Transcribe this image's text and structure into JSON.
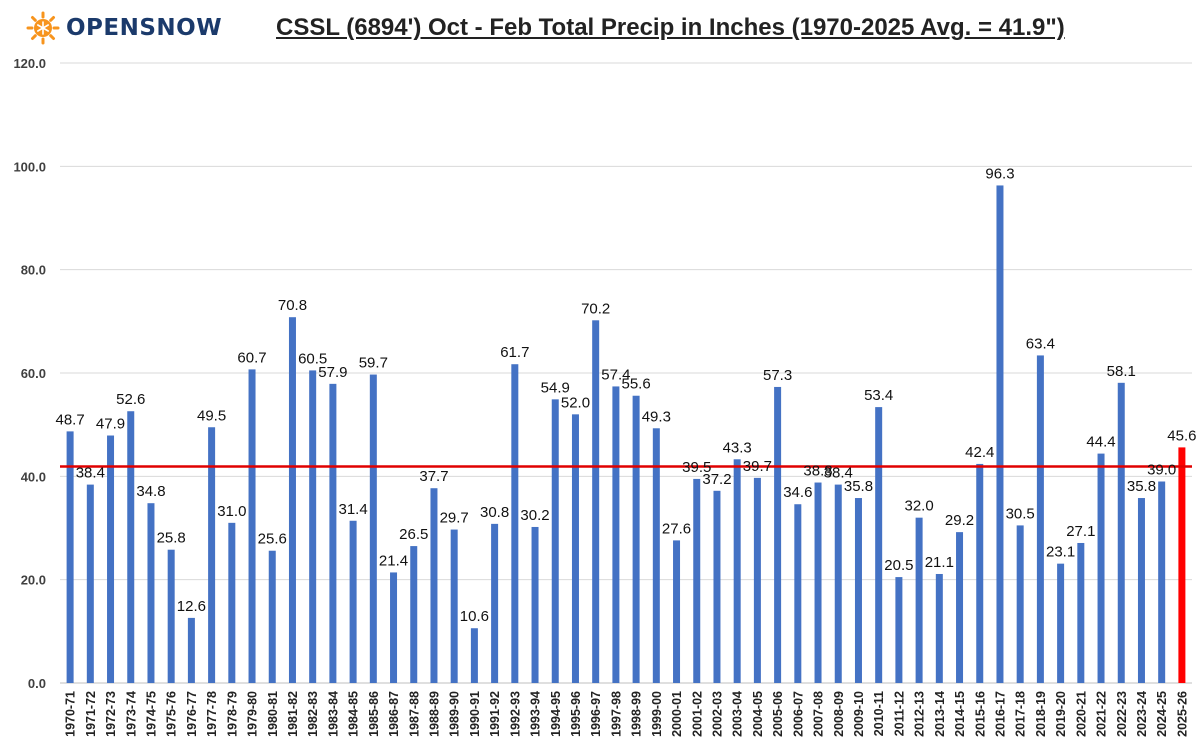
{
  "brand": {
    "name": "OPENSNOW",
    "logo_icon": "sun-snowflake-icon"
  },
  "chart_data": {
    "type": "bar",
    "title": "CSSL (6894') Oct - Feb Total Precip in Inches (1970-2025 Avg. = 41.9\")",
    "xlabel": "",
    "ylabel": "",
    "ylim": [
      0,
      120
    ],
    "yticks": [
      "0.0",
      "20.0",
      "40.0",
      "60.0",
      "80.0",
      "100.0",
      "120.0"
    ],
    "grid": true,
    "bar_color": "#4472c4",
    "highlight_color": "#ff0000",
    "average_line": {
      "value": 41.9,
      "color": "#e00000"
    },
    "categories": [
      "1970-71",
      "1971-72",
      "1972-73",
      "1973-74",
      "1974-75",
      "1975-76",
      "1976-77",
      "1977-78",
      "1978-79",
      "1979-80",
      "1980-81",
      "1981-82",
      "1982-83",
      "1983-84",
      "1984-85",
      "1985-86",
      "1986-87",
      "1987-88",
      "1988-89",
      "1989-90",
      "1990-91",
      "1991-92",
      "1992-93",
      "1993-94",
      "1994-95",
      "1995-96",
      "1996-97",
      "1997-98",
      "1998-99",
      "1999-00",
      "2000-01",
      "2001-02",
      "2002-03",
      "2003-04",
      "2004-05",
      "2005-06",
      "2006-07",
      "2007-08",
      "2008-09",
      "2009-10",
      "2010-11",
      "2011-12",
      "2012-13",
      "2013-14",
      "2014-15",
      "2015-16",
      "2016-17",
      "2017-18",
      "2018-19",
      "2019-20",
      "2020-21",
      "2021-22",
      "2022-23",
      "2023-24",
      "2024-25",
      "2025-26"
    ],
    "values": [
      48.7,
      38.4,
      47.9,
      52.6,
      34.8,
      25.8,
      12.6,
      49.5,
      31.0,
      60.7,
      25.6,
      70.8,
      60.5,
      57.9,
      31.4,
      59.7,
      21.4,
      26.5,
      37.7,
      29.7,
      10.6,
      30.8,
      61.7,
      30.2,
      54.9,
      52.0,
      70.2,
      57.4,
      55.6,
      49.3,
      27.6,
      39.5,
      37.2,
      43.3,
      39.7,
      57.3,
      34.6,
      38.8,
      38.4,
      35.8,
      53.4,
      20.5,
      32.0,
      21.1,
      29.2,
      42.4,
      96.3,
      30.5,
      63.4,
      23.1,
      27.1,
      44.4,
      58.1,
      35.8,
      39.0,
      45.6
    ],
    "highlight_index": 55
  }
}
